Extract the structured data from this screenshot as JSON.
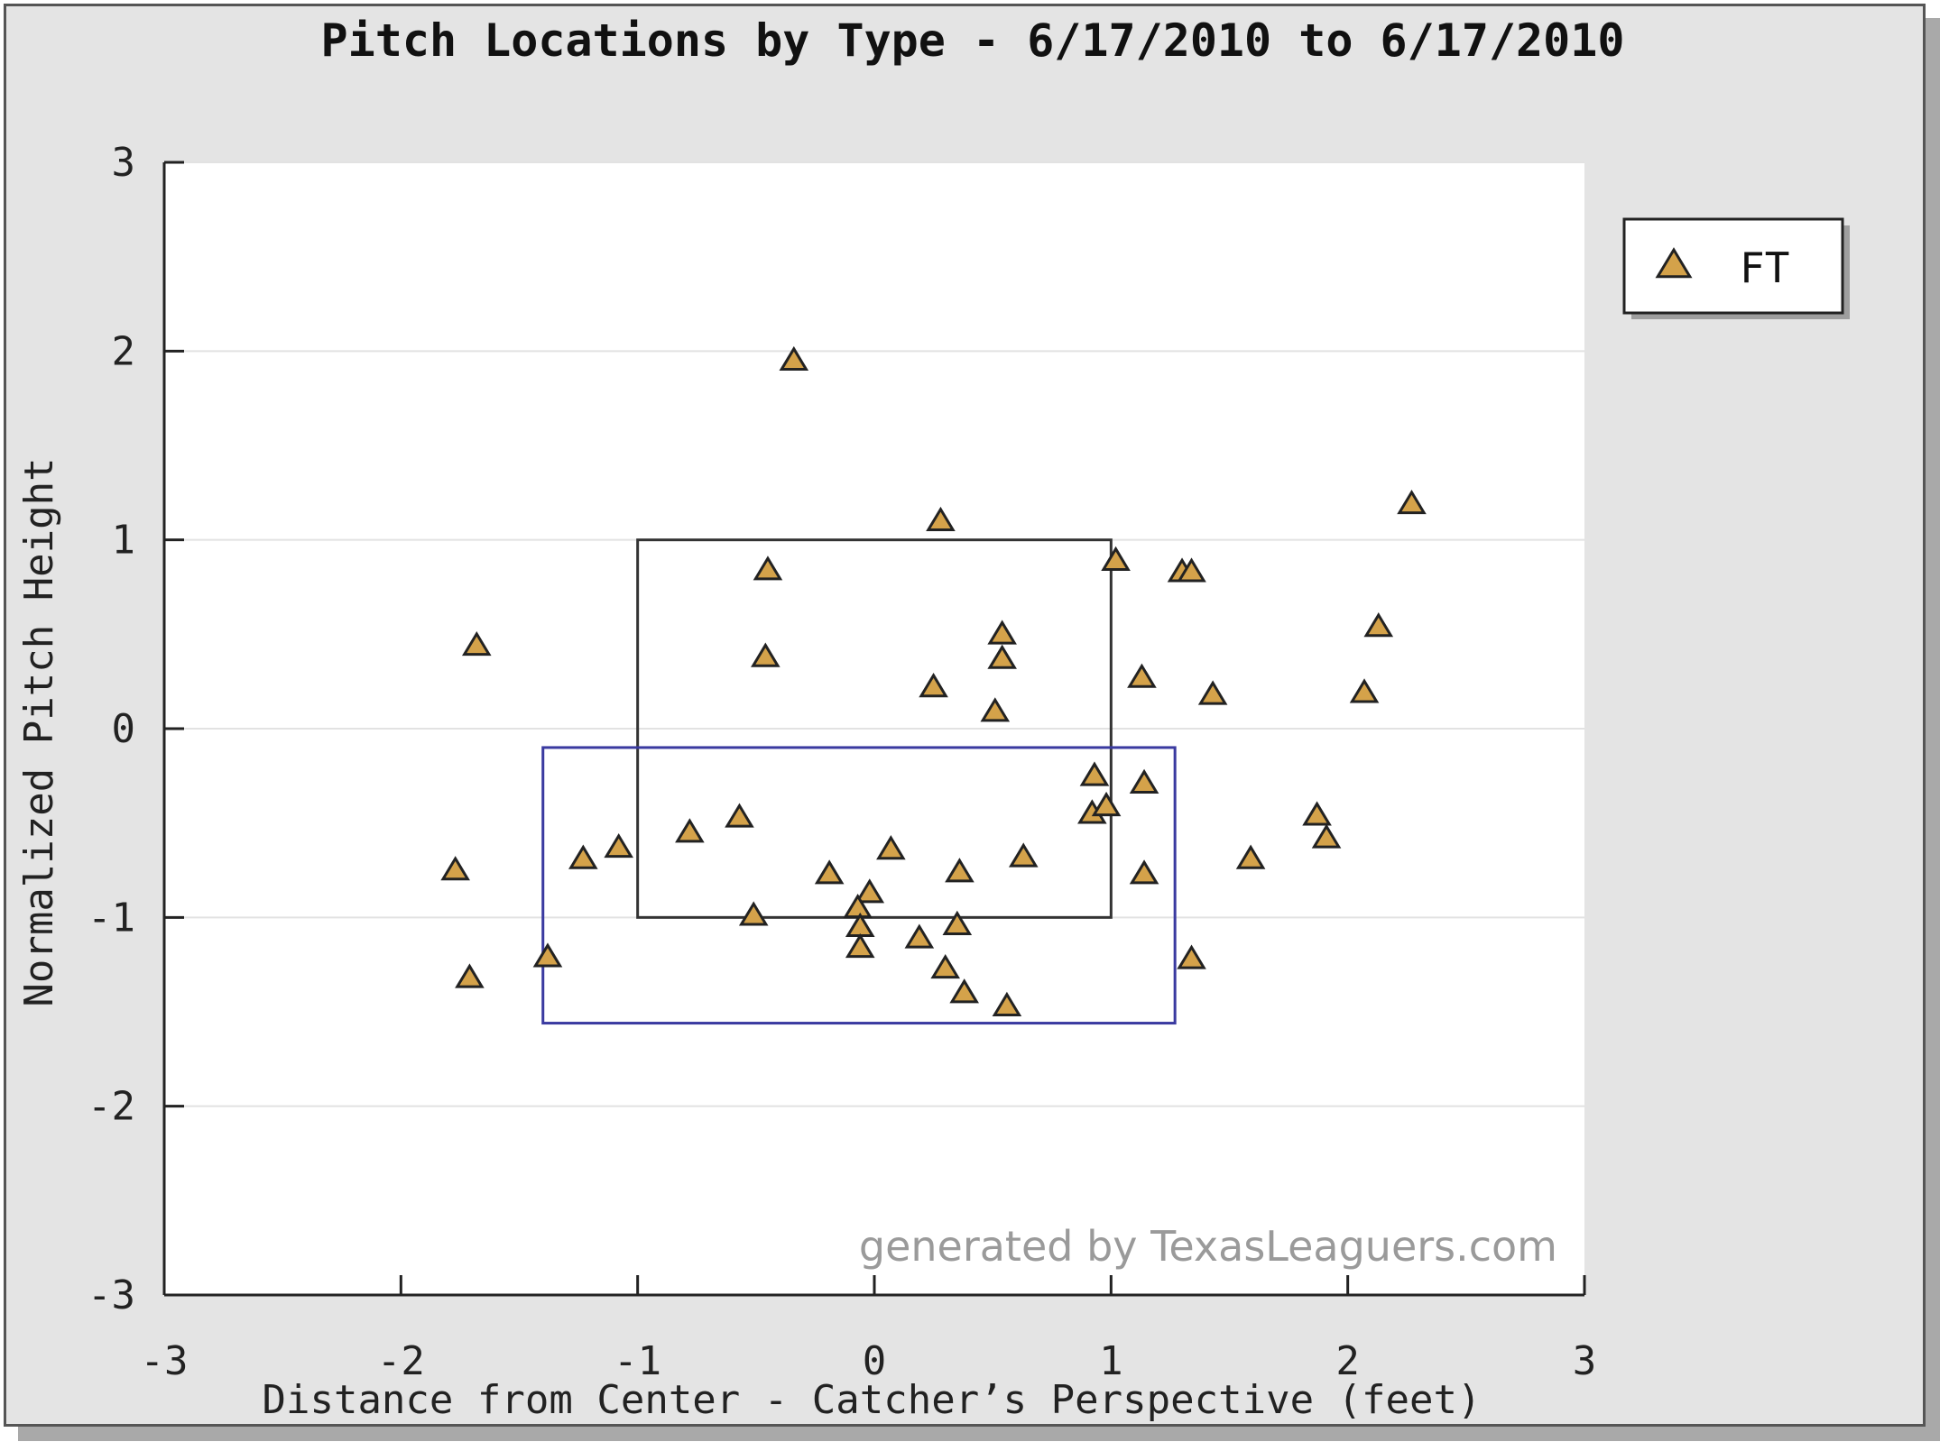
{
  "chart_data": {
    "type": "scatter",
    "title": "Pitch Locations by Type - 6/17/2010 to 6/17/2010",
    "xlabel": "Distance from Center - Catcher’s Perspective (feet)",
    "ylabel": "Normalized Pitch Height",
    "xlim": [
      -3,
      3
    ],
    "ylim": [
      -3,
      3
    ],
    "xticks": [
      -3,
      -2,
      -1,
      0,
      1,
      2,
      3
    ],
    "yticks": [
      -3,
      -2,
      -1,
      0,
      1,
      2,
      3
    ],
    "grid": "horizontal",
    "legend_position": "top-right",
    "watermark": "generated by TexasLeaguers.com",
    "series": [
      {
        "name": "FT",
        "marker": "triangle",
        "color": "#d4a24a",
        "points": [
          {
            "x": -0.34,
            "y": 1.95
          },
          {
            "x": 0.28,
            "y": 1.1
          },
          {
            "x": 2.27,
            "y": 1.19
          },
          {
            "x": 1.02,
            "y": 0.89
          },
          {
            "x": 1.3,
            "y": 0.83
          },
          {
            "x": 1.34,
            "y": 0.83
          },
          {
            "x": -0.45,
            "y": 0.84
          },
          {
            "x": -1.68,
            "y": 0.44
          },
          {
            "x": -0.46,
            "y": 0.38
          },
          {
            "x": 0.54,
            "y": 0.5
          },
          {
            "x": 0.54,
            "y": 0.37
          },
          {
            "x": 0.25,
            "y": 0.22
          },
          {
            "x": 0.51,
            "y": 0.09
          },
          {
            "x": 1.13,
            "y": 0.27
          },
          {
            "x": 1.43,
            "y": 0.18
          },
          {
            "x": 2.13,
            "y": 0.54
          },
          {
            "x": 2.07,
            "y": 0.19
          },
          {
            "x": 0.93,
            "y": -0.25
          },
          {
            "x": 1.14,
            "y": -0.29
          },
          {
            "x": 0.92,
            "y": -0.45
          },
          {
            "x": 0.98,
            "y": -0.41
          },
          {
            "x": 1.87,
            "y": -0.46
          },
          {
            "x": 1.91,
            "y": -0.58
          },
          {
            "x": 1.59,
            "y": -0.69
          },
          {
            "x": 1.14,
            "y": -0.77
          },
          {
            "x": 1.34,
            "y": -1.22
          },
          {
            "x": -0.57,
            "y": -0.47
          },
          {
            "x": -0.78,
            "y": -0.55
          },
          {
            "x": -1.08,
            "y": -0.63
          },
          {
            "x": -1.23,
            "y": -0.69
          },
          {
            "x": -1.77,
            "y": -0.75
          },
          {
            "x": -1.71,
            "y": -1.32
          },
          {
            "x": -1.38,
            "y": -1.21
          },
          {
            "x": -0.51,
            "y": -0.99
          },
          {
            "x": 0.07,
            "y": -0.64
          },
          {
            "x": -0.19,
            "y": -0.77
          },
          {
            "x": 0.36,
            "y": -0.76
          },
          {
            "x": 0.63,
            "y": -0.68
          },
          {
            "x": -0.02,
            "y": -0.87
          },
          {
            "x": -0.07,
            "y": -0.95
          },
          {
            "x": -0.06,
            "y": -1.05
          },
          {
            "x": -0.06,
            "y": -1.16
          },
          {
            "x": 0.19,
            "y": -1.11
          },
          {
            "x": 0.35,
            "y": -1.04
          },
          {
            "x": 0.3,
            "y": -1.27
          },
          {
            "x": 0.38,
            "y": -1.4
          },
          {
            "x": 0.56,
            "y": -1.47
          }
        ]
      }
    ],
    "zones": [
      {
        "name": "strike-zone",
        "x0": -1,
        "x1": 1,
        "y0": -1,
        "y1": 1,
        "color": "#333333"
      },
      {
        "name": "secondary-zone",
        "x0": -1.4,
        "x1": 1.27,
        "y0": -1.56,
        "y1": -0.1,
        "color": "#3a3aa0"
      }
    ]
  }
}
